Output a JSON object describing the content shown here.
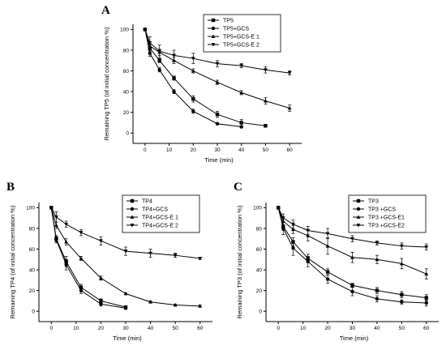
{
  "chart_data": [
    {
      "panel": "A",
      "type": "line",
      "xlabel": "Time (min)",
      "ylabel": "Remaining TP5 (of initial concentration %)",
      "xlim": [
        -5,
        65
      ],
      "ylim": [
        -10,
        105
      ],
      "xticks": [
        0,
        10,
        20,
        30,
        40,
        50,
        60
      ],
      "yticks": [
        0,
        20,
        40,
        60,
        80,
        100
      ],
      "legend_position": "top-right",
      "series": [
        {
          "name": "TP5",
          "marker": "square",
          "x": [
            0,
            2,
            6,
            12,
            20,
            30,
            40,
            50
          ],
          "y": [
            100,
            82,
            70,
            53,
            33,
            18,
            10,
            7
          ],
          "err": [
            0,
            3,
            2,
            2,
            3,
            3,
            3,
            1
          ]
        },
        {
          "name": "TP5+GCS",
          "marker": "circle",
          "x": [
            0,
            2,
            6,
            12,
            20,
            30,
            40
          ],
          "y": [
            100,
            77,
            61,
            40,
            21,
            9,
            6
          ],
          "err": [
            0,
            3,
            2,
            2,
            2,
            1,
            1
          ]
        },
        {
          "name": "TP5+GCS-E 1",
          "marker": "triangle-up",
          "x": [
            0,
            2,
            6,
            12,
            20,
            30,
            40,
            50,
            60
          ],
          "y": [
            100,
            84,
            78,
            70,
            60,
            49,
            39,
            31,
            24
          ],
          "err": [
            0,
            4,
            3,
            3,
            2,
            2,
            2,
            3,
            3
          ]
        },
        {
          "name": "TP5+GCS-E 2",
          "marker": "triangle-down",
          "x": [
            0,
            2,
            6,
            12,
            20,
            30,
            40,
            50,
            60
          ],
          "y": [
            100,
            87,
            79,
            75,
            72,
            67,
            65,
            61,
            58
          ],
          "err": [
            0,
            6,
            6,
            5,
            5,
            3,
            2,
            3,
            2
          ]
        }
      ]
    },
    {
      "panel": "B",
      "type": "line",
      "xlabel": "Time (min)",
      "ylabel": "Remaining TP4 (of initial concentration %)",
      "xlim": [
        -5,
        65
      ],
      "ylim": [
        -10,
        105
      ],
      "xticks": [
        0,
        10,
        20,
        30,
        40,
        50,
        60
      ],
      "yticks": [
        0,
        20,
        40,
        60,
        80,
        100
      ],
      "legend_position": "top-right",
      "series": [
        {
          "name": "TP4",
          "marker": "square",
          "x": [
            0,
            2,
            6,
            12,
            20,
            30
          ],
          "y": [
            100,
            70,
            48,
            23,
            10,
            4
          ],
          "err": [
            0,
            3,
            5,
            3,
            2,
            1
          ]
        },
        {
          "name": "TP4+GCS",
          "marker": "circle",
          "x": [
            0,
            2,
            6,
            12,
            20,
            30
          ],
          "y": [
            100,
            69,
            45,
            20,
            7,
            3
          ],
          "err": [
            0,
            3,
            5,
            3,
            2,
            1
          ]
        },
        {
          "name": "TP4+GCS-E 1",
          "marker": "triangle-up",
          "x": [
            0,
            2,
            6,
            12,
            20,
            30,
            40,
            50,
            60
          ],
          "y": [
            100,
            83,
            67,
            51,
            32,
            17,
            9,
            6,
            5
          ],
          "err": [
            0,
            3,
            3,
            2,
            2,
            1,
            1,
            1,
            1
          ]
        },
        {
          "name": "TP4+GCS-E 2",
          "marker": "triangle-down",
          "x": [
            0,
            2,
            6,
            12,
            20,
            30,
            40,
            50,
            60
          ],
          "y": [
            100,
            91,
            84,
            76,
            68,
            58,
            56,
            54,
            51
          ],
          "err": [
            0,
            5,
            3,
            3,
            4,
            4,
            4,
            2,
            1
          ]
        }
      ]
    },
    {
      "panel": "C",
      "type": "line",
      "xlabel": "Time (min)",
      "ylabel": "Remaining TP3 (of initial concentration %)",
      "xlim": [
        -5,
        65
      ],
      "ylim": [
        -10,
        105
      ],
      "xticks": [
        0,
        10,
        20,
        30,
        40,
        50,
        60
      ],
      "yticks": [
        0,
        20,
        40,
        60,
        80,
        100
      ],
      "legend_position": "top-right",
      "series": [
        {
          "name": "TP3",
          "marker": "square",
          "x": [
            0,
            2,
            6,
            12,
            20,
            30,
            40,
            50,
            60
          ],
          "y": [
            100,
            82,
            67,
            51,
            38,
            25,
            20,
            16,
            13
          ],
          "err": [
            0,
            4,
            4,
            4,
            3,
            2,
            3,
            3,
            3
          ]
        },
        {
          "name": "TP3 +GCS",
          "marker": "circle",
          "x": [
            0,
            2,
            6,
            12,
            20,
            30,
            40,
            50,
            60
          ],
          "y": [
            100,
            80,
            61,
            48,
            31,
            19,
            12,
            9,
            8
          ],
          "err": [
            0,
            6,
            7,
            5,
            4,
            4,
            3,
            2,
            3
          ]
        },
        {
          "name": "TP3 +GCS-E1",
          "marker": "triangle-up",
          "x": [
            0,
            2,
            6,
            12,
            20,
            30,
            40,
            50,
            60
          ],
          "y": [
            100,
            87,
            79,
            73,
            63,
            52,
            50,
            46,
            36
          ],
          "err": [
            0,
            4,
            4,
            5,
            8,
            5,
            4,
            5,
            5
          ]
        },
        {
          "name": "TP3 +GCS-E2",
          "marker": "triangle-down",
          "x": [
            0,
            2,
            6,
            12,
            20,
            30,
            40,
            50,
            60
          ],
          "y": [
            100,
            90,
            84,
            78,
            75,
            70,
            66,
            63,
            62
          ],
          "err": [
            0,
            4,
            4,
            4,
            5,
            3,
            2,
            3,
            3
          ]
        }
      ]
    }
  ]
}
